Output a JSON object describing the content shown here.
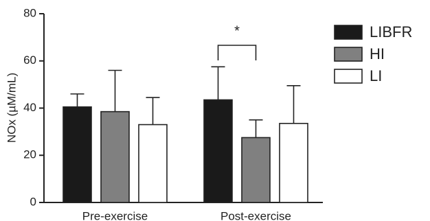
{
  "chart_data": {
    "type": "bar",
    "y_label": "NOx (µM/mL)",
    "categories": [
      "Pre-exercise",
      "Post-exercise"
    ],
    "series": [
      {
        "name": "LIBFR",
        "color": "#1a1a1a",
        "values": [
          40.5,
          43.5
        ],
        "errors": [
          5.5,
          14
        ]
      },
      {
        "name": "HI",
        "color": "#808080",
        "values": [
          38.5,
          27.5
        ],
        "errors": [
          17.5,
          7.5
        ]
      },
      {
        "name": "LI",
        "color": "#ffffff",
        "values": [
          33,
          33.5
        ],
        "errors": [
          11.5,
          16
        ]
      }
    ],
    "ylim": [
      0,
      80
    ],
    "yticks": [
      0,
      20,
      40,
      60,
      80
    ],
    "annotation": "*",
    "legend": "right"
  }
}
